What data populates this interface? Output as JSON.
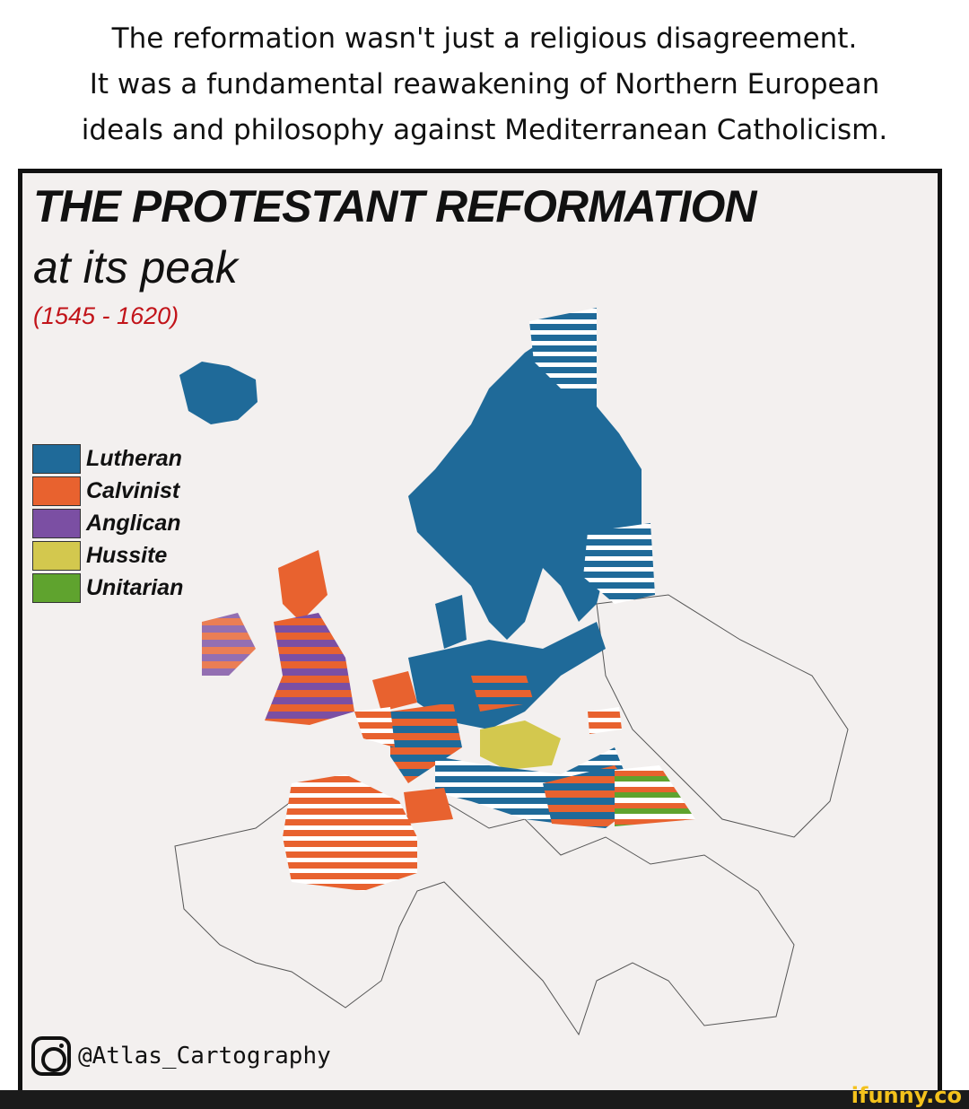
{
  "caption": {
    "lines": [
      "The reformation wasn't just a religious disagreement.",
      "It was a fundamental reawakening of Northern European",
      "ideals and philosophy against Mediterranean Catholicism."
    ]
  },
  "map": {
    "title": "THE PROTESTANT REFORMATION",
    "subtitle": "at its peak",
    "dates": "(1545 - 1620)",
    "legend": [
      {
        "label": "Lutheran",
        "color": "#1f6a99"
      },
      {
        "label": "Calvinist",
        "color": "#e8622f"
      },
      {
        "label": "Anglican",
        "color": "#7b4fa3"
      },
      {
        "label": "Hussite",
        "color": "#d3c84e"
      },
      {
        "label": "Unitarian",
        "color": "#5fa32e"
      }
    ],
    "credit_icon": "instagram-icon",
    "credit": "@Atlas_Cartography"
  },
  "watermark": "ifunny.co"
}
